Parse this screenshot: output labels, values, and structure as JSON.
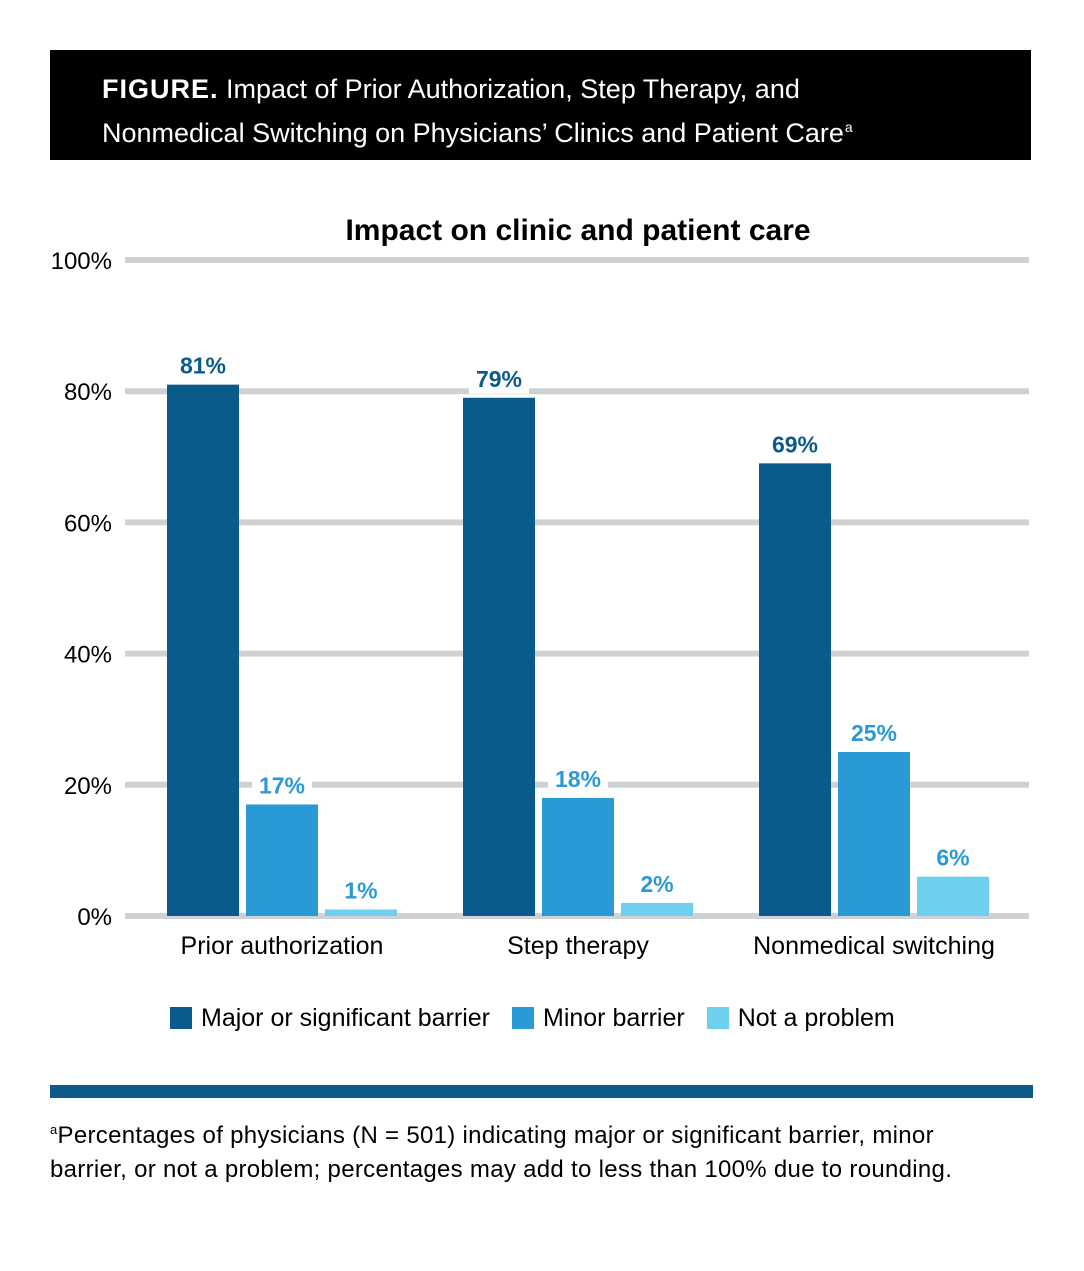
{
  "figure": {
    "label": "FIGURE.",
    "title_line1": "Impact of Prior Authorization, Step Therapy, and",
    "title_line2": "Nonmedical Switching on Physicians’ Clinics and Patient Care",
    "title_sup": "a"
  },
  "colors": {
    "major": "#0b5a8c",
    "minor": "#2a9ad6",
    "none": "#6fcfee",
    "grid": "#cfd2d4",
    "header_bg": "#000000",
    "rule": "#0b5a8c"
  },
  "chart_data": {
    "type": "bar",
    "title": "Impact on clinic and patient care",
    "categories": [
      "Prior authorization",
      "Step therapy",
      "Nonmedical switching"
    ],
    "series": [
      {
        "name": "Major or significant barrier",
        "values": [
          81,
          79,
          69
        ],
        "labels": [
          "81%",
          "79%",
          "69%"
        ]
      },
      {
        "name": "Minor barrier",
        "values": [
          17,
          18,
          25
        ],
        "labels": [
          "17%",
          "18%",
          "25%"
        ]
      },
      {
        "name": "Not a problem",
        "values": [
          1,
          2,
          6
        ],
        "labels": [
          "1%",
          "2%",
          "6%"
        ]
      }
    ],
    "ylim": [
      0,
      100
    ],
    "yticks": [
      0,
      20,
      40,
      60,
      80,
      100
    ],
    "ytick_labels": [
      "0%",
      "20%",
      "40%",
      "60%",
      "80%",
      "100%"
    ],
    "grid": true,
    "legend_position": "bottom"
  },
  "footnote": {
    "sup": "a",
    "text": "Percentages of physicians (N = 501) indicating major or significant barrier, minor barrier, or not a problem; percentages may add to less than 100% due to rounding."
  }
}
